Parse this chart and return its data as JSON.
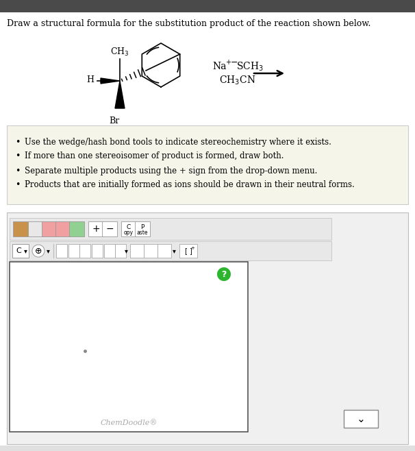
{
  "bg_top": "#4a4a4a",
  "bg_main": "#ffffff",
  "bg_bullet": "#f5f5ea",
  "bg_toolbar_outer": "#f0f0f0",
  "bg_toolbar_inner": "#e8e8e8",
  "bg_canvas": "#ffffff",
  "bg_right_panel": "#f0f0f0",
  "title_text": "Draw a structural formula for the substitution product of the reaction shown below.",
  "title_color": "#000000",
  "bullet_color": "#000000",
  "bullet_lines": [
    "Use the wedge/hash bond tools to indicate stereochemistry where it exists.",
    "If more than one stereoisomer of product is formed, draw both.",
    "Separate multiple products using the + sign from the drop-down menu.",
    "Products that are initially formed as ions should be drawn in their neutral forms."
  ],
  "chemdoodle_label": "ChemDoodle®",
  "chemdoodle_color": "#aaaaaa"
}
